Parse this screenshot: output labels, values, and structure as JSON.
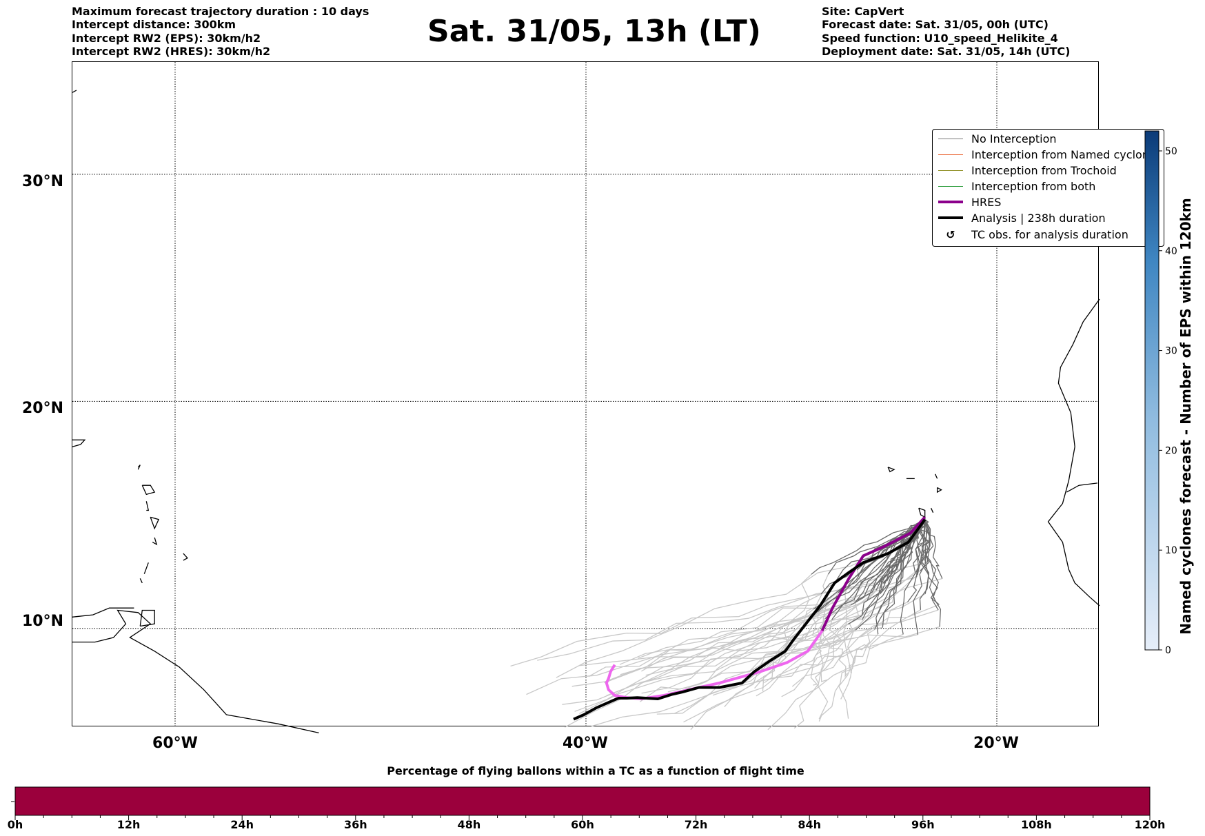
{
  "header": {
    "left_lines": [
      "Maximum forecast trajectory duration : 10 days",
      "Intercept distance: 300km",
      "Intercept RW2 (EPS):  30km/h2",
      "Intercept RW2 (HRES): 30km/h2"
    ],
    "title": "Sat. 31/05, 13h (LT)",
    "right_lines": [
      "Site: CapVert",
      "Forecast date: Sat. 31/05, 00h (UTC)",
      "Speed function: U10_speed_Helikite_4",
      "Deployment date: Sat. 31/05, 14h (UTC)"
    ]
  },
  "map": {
    "lat_labels": [
      "30°N",
      "20°N",
      "10°N"
    ],
    "lon_labels": [
      "60°W",
      "40°W",
      "20°W"
    ],
    "extent": {
      "lon_min": -65,
      "lon_max": -15,
      "lat_min": 5.4,
      "lat_max": 35.4
    },
    "gridlines": {
      "lons": [
        -60,
        -40,
        -20
      ],
      "lats": [
        10,
        20,
        30
      ],
      "style": "dotted"
    },
    "site": {
      "name": "CapVert",
      "lon": -23.5,
      "lat": 14.9
    },
    "colors": {
      "no_interception": "#7a7a7a",
      "named_cyclone": "#e8602c",
      "trochoid": "#8a8a1a",
      "both": "#2e9e3e",
      "hres": "#8b008b",
      "hres_tail": "#ee66ee",
      "analysis": "#000000",
      "land": "#000000"
    },
    "hres_track": [
      [
        -23.5,
        14.9
      ],
      [
        -24.2,
        14.2
      ],
      [
        -25.5,
        13.6
      ],
      [
        -26.5,
        13.2
      ],
      [
        -27.2,
        12.2
      ],
      [
        -28,
        10.9
      ],
      [
        -28.5,
        9.9
      ],
      [
        -29.2,
        9
      ],
      [
        -30.2,
        8.5
      ],
      [
        -31.5,
        8.1
      ],
      [
        -33.5,
        7.6
      ],
      [
        -35,
        7.3
      ],
      [
        -36.2,
        7.05
      ],
      [
        -37.3,
        6.9
      ],
      [
        -38,
        6.95
      ],
      [
        -38.6,
        7.05
      ],
      [
        -38.9,
        7.3
      ],
      [
        -39,
        7.6
      ],
      [
        -38.9,
        7.8
      ],
      [
        -38.8,
        8.1
      ],
      [
        -38.6,
        8.4
      ]
    ],
    "analysis_track": [
      [
        -23.5,
        14.8
      ],
      [
        -24.3,
        13.8
      ],
      [
        -25.3,
        13.3
      ],
      [
        -26.5,
        12.9
      ],
      [
        -27.3,
        12.4
      ],
      [
        -27.9,
        12
      ],
      [
        -28.6,
        11
      ],
      [
        -29.3,
        10.2
      ],
      [
        -29.9,
        9.5
      ],
      [
        -30.3,
        9
      ],
      [
        -31,
        8.6
      ],
      [
        -31.8,
        8.1
      ],
      [
        -32.4,
        7.6
      ],
      [
        -33.5,
        7.4
      ],
      [
        -34.5,
        7.4
      ],
      [
        -35.3,
        7.2
      ],
      [
        -35.8,
        7.1
      ],
      [
        -36.5,
        6.9
      ],
      [
        -37.5,
        6.95
      ],
      [
        -38,
        6.93
      ],
      [
        -38.4,
        6.93
      ],
      [
        -38.5,
        6.9
      ],
      [
        -39.5,
        6.5
      ],
      [
        -40.1,
        6.2
      ],
      [
        -40.6,
        6
      ]
    ]
  },
  "legend": {
    "items": [
      {
        "label": "No Interception",
        "color": "#7a7a7a",
        "width": 1.2,
        "type": "line"
      },
      {
        "label": "Interception from Named cyclone",
        "color": "#e8602c",
        "width": 1.2,
        "type": "line"
      },
      {
        "label": "Interception from Trochoid",
        "color": "#8a8a1a",
        "width": 1.2,
        "type": "line"
      },
      {
        "label": "Interception from both",
        "color": "#2e9e3e",
        "width": 1.2,
        "type": "line"
      },
      {
        "label": "HRES",
        "color": "#8b008b",
        "width": 4,
        "type": "line"
      },
      {
        "label": "Analysis | 238h duration",
        "color": "#000000",
        "width": 4,
        "type": "line"
      },
      {
        "label": "TC obs. for analysis duration",
        "symbol": "↺",
        "type": "marker"
      }
    ]
  },
  "colorbar": {
    "label": "Named cyclones forecast - Number of EPS within 120km",
    "min": 0,
    "max": 52,
    "ticks": [
      "0",
      "10",
      "20",
      "30",
      "40",
      "50"
    ],
    "color_low": "#e6eef9",
    "color_high": "#0b3b78"
  },
  "hbar": {
    "title": "Percentage of flying ballons within a TC as a function of flight time",
    "fill_color": "#9b003c",
    "ticks": [
      "0h",
      "12h",
      "24h",
      "36h",
      "48h",
      "60h",
      "72h",
      "84h",
      "96h",
      "108h",
      "120h"
    ],
    "percentage_values": [
      0,
      0,
      0,
      0,
      0,
      0,
      0,
      0,
      0,
      0,
      0
    ]
  }
}
